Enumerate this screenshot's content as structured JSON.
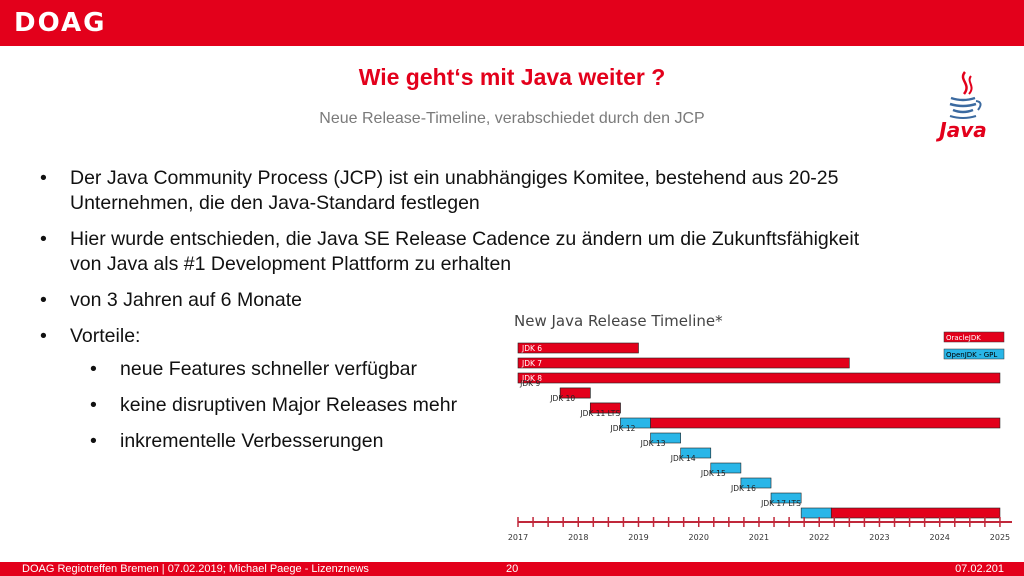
{
  "header": {
    "logo": "DOAG"
  },
  "slide": {
    "title": "Wie geht‘s mit Java weiter ?",
    "subtitle": "Neue Release-Timeline, verabschiedet durch den JCP",
    "java_logo_text": "Java"
  },
  "bullets": [
    "Der Java Community Process (JCP) ist ein unabhängiges Komitee, bestehend aus 20-25 Unternehmen, die den Java-Standard festlegen",
    "Hier wurde entschieden, die Java SE Release Cadence zu ändern um die Zukunftsfähigkeit von Java als #1 Development Plattform zu erhalten",
    "von 3 Jahren auf 6 Monate",
    "Vorteile:"
  ],
  "sub_bullets": [
    "neue Features schneller verfügbar",
    "keine disruptiven Major Releases mehr",
    "inkrementelle Verbesserungen"
  ],
  "bullet_char": "•",
  "chart_data": {
    "type": "gantt",
    "title": "New Java Release Timeline*",
    "legend": [
      {
        "label": "OracleJDK",
        "color": "#e3001b"
      },
      {
        "label": "OpenJDK - GPL",
        "color": "#29b6e8"
      }
    ],
    "xlabels": [
      "2017",
      "2018",
      "2019",
      "2020",
      "2021",
      "2022",
      "2023",
      "2024",
      "2025"
    ],
    "xlim": [
      2017,
      2025.2
    ],
    "releases": [
      {
        "label": "JDK 6",
        "oracle": [
          2017.0,
          2019.0
        ]
      },
      {
        "label": "JDK 7",
        "oracle": [
          2017.0,
          2022.5
        ]
      },
      {
        "label": "JDK 8",
        "oracle": [
          2017.0,
          2025.0
        ]
      },
      {
        "label": "JDK 9",
        "open": [
          2017.7,
          2018.2
        ],
        "oracle": [
          2017.7,
          2018.2
        ]
      },
      {
        "label": "JDK 10",
        "open": [
          2018.2,
          2018.7
        ],
        "oracle": [
          2018.2,
          2018.7
        ]
      },
      {
        "label": "JDK 11 LTS",
        "open": [
          2018.7,
          2019.2
        ],
        "oracle": [
          2019.2,
          2025.0
        ]
      },
      {
        "label": "JDK 12",
        "open": [
          2019.2,
          2019.7
        ]
      },
      {
        "label": "JDK 13",
        "open": [
          2019.7,
          2020.2
        ]
      },
      {
        "label": "JDK 14",
        "open": [
          2020.2,
          2020.7
        ]
      },
      {
        "label": "JDK 15",
        "open": [
          2020.7,
          2021.2
        ]
      },
      {
        "label": "JDK 16",
        "open": [
          2021.2,
          2021.7
        ]
      },
      {
        "label": "JDK 17 LTS",
        "open": [
          2021.7,
          2022.2
        ],
        "oracle": [
          2022.2,
          2025.0
        ]
      }
    ],
    "colors": {
      "oracle": "#e3001b",
      "open": "#29b6e8",
      "axis": "#c0283a"
    }
  },
  "footer": {
    "left": "DOAG Regiotreffen Bremen | 07.02.2019; Michael Paege - Lizenznews",
    "page": "20",
    "right": "07.02.201"
  }
}
